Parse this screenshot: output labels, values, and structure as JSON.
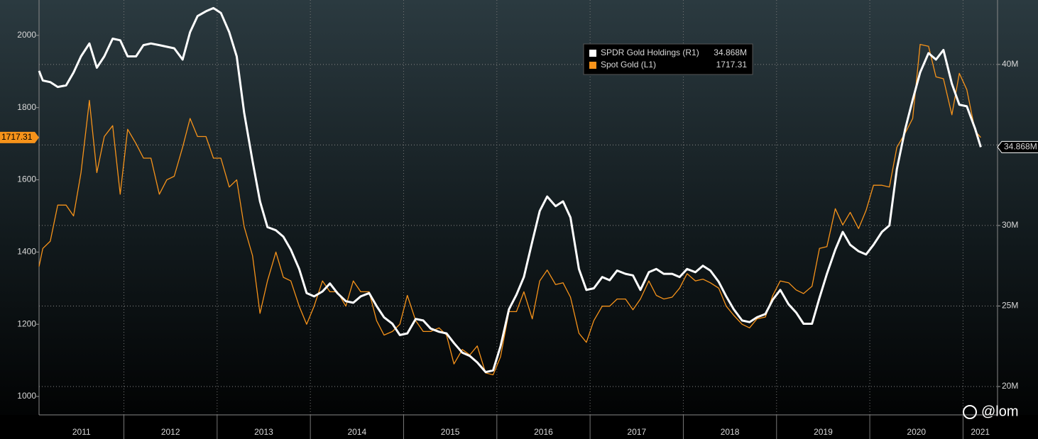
{
  "chart_data": {
    "type": "line",
    "x": [
      2011.09,
      2011.13,
      2011.21,
      2011.29,
      2011.38,
      2011.46,
      2011.54,
      2011.63,
      2011.71,
      2011.79,
      2011.88,
      2011.96,
      2012.04,
      2012.13,
      2012.21,
      2012.29,
      2012.38,
      2012.46,
      2012.54,
      2012.63,
      2012.71,
      2012.79,
      2012.88,
      2012.96,
      2013.04,
      2013.13,
      2013.21,
      2013.29,
      2013.38,
      2013.46,
      2013.54,
      2013.63,
      2013.71,
      2013.79,
      2013.88,
      2013.96,
      2014.04,
      2014.13,
      2014.21,
      2014.29,
      2014.38,
      2014.46,
      2014.54,
      2014.63,
      2014.71,
      2014.79,
      2014.88,
      2014.96,
      2015.04,
      2015.13,
      2015.21,
      2015.29,
      2015.38,
      2015.46,
      2015.54,
      2015.63,
      2015.71,
      2015.79,
      2015.88,
      2015.96,
      2016.04,
      2016.13,
      2016.21,
      2016.29,
      2016.38,
      2016.46,
      2016.54,
      2016.63,
      2016.71,
      2016.79,
      2016.88,
      2016.96,
      2017.04,
      2017.13,
      2017.21,
      2017.29,
      2017.38,
      2017.46,
      2017.54,
      2017.63,
      2017.71,
      2017.79,
      2017.88,
      2017.96,
      2018.04,
      2018.13,
      2018.21,
      2018.29,
      2018.38,
      2018.46,
      2018.54,
      2018.63,
      2018.71,
      2018.79,
      2018.88,
      2018.96,
      2019.04,
      2019.13,
      2019.21,
      2019.29,
      2019.38,
      2019.46,
      2019.54,
      2019.63,
      2019.71,
      2019.79,
      2019.88,
      2019.96,
      2020.04,
      2020.13,
      2020.21,
      2020.29,
      2020.38,
      2020.46,
      2020.54,
      2020.63,
      2020.71,
      2020.79,
      2020.88,
      2020.96,
      2021.04,
      2021.13,
      2021.19
    ],
    "series": [
      {
        "name": "SPDR Gold Holdings (R1)",
        "color": "#ffffff",
        "axis": "y2",
        "last_value_label": "34.868M",
        "values": [
          39.6,
          39.0,
          38.9,
          38.6,
          38.7,
          39.5,
          40.5,
          41.3,
          39.8,
          40.5,
          41.6,
          41.5,
          40.5,
          40.5,
          41.2,
          41.3,
          41.2,
          41.1,
          41.0,
          40.3,
          42.0,
          43.0,
          43.3,
          43.5,
          43.2,
          42.0,
          40.5,
          37.0,
          34.0,
          31.5,
          29.9,
          29.7,
          29.3,
          28.5,
          27.3,
          25.8,
          25.6,
          25.9,
          26.4,
          25.8,
          25.3,
          25.2,
          25.6,
          25.8,
          25.0,
          24.3,
          23.9,
          23.2,
          23.3,
          24.2,
          24.1,
          23.6,
          23.4,
          23.3,
          22.7,
          22.1,
          21.9,
          21.5,
          20.9,
          21.0,
          22.5,
          24.8,
          25.7,
          26.8,
          29.0,
          30.9,
          31.8,
          31.2,
          31.5,
          30.5,
          27.3,
          26.0,
          26.1,
          26.8,
          26.6,
          27.2,
          27.0,
          26.9,
          26.0,
          27.1,
          27.3,
          27.0,
          27.0,
          26.8,
          27.3,
          27.1,
          27.5,
          27.2,
          26.5,
          25.6,
          24.8,
          24.1,
          24.0,
          24.3,
          24.5,
          25.4,
          26.0,
          25.1,
          24.6,
          23.9,
          23.9,
          25.5,
          27.0,
          28.5,
          29.6,
          28.8,
          28.4,
          28.2,
          28.8,
          29.6,
          30.0,
          33.5,
          36.0,
          37.8,
          39.5,
          40.7,
          40.3,
          40.9,
          38.8,
          37.5,
          37.4,
          36.0,
          34.868
        ]
      },
      {
        "name": "Spot Gold (L1)",
        "color": "#f7931a",
        "axis": "y",
        "last_value_label": "1717.31",
        "values": [
          1360,
          1410,
          1430,
          1530,
          1530,
          1500,
          1620,
          1820,
          1620,
          1720,
          1750,
          1560,
          1740,
          1700,
          1660,
          1660,
          1560,
          1600,
          1610,
          1690,
          1770,
          1720,
          1720,
          1660,
          1660,
          1580,
          1600,
          1470,
          1390,
          1230,
          1320,
          1400,
          1330,
          1320,
          1250,
          1200,
          1250,
          1320,
          1290,
          1290,
          1250,
          1320,
          1290,
          1290,
          1210,
          1170,
          1180,
          1200,
          1280,
          1210,
          1180,
          1180,
          1190,
          1170,
          1090,
          1130,
          1115,
          1140,
          1065,
          1060,
          1110,
          1235,
          1235,
          1290,
          1215,
          1320,
          1350,
          1310,
          1315,
          1275,
          1175,
          1150,
          1210,
          1250,
          1250,
          1270,
          1270,
          1240,
          1270,
          1320,
          1280,
          1270,
          1275,
          1300,
          1340,
          1320,
          1325,
          1315,
          1300,
          1250,
          1225,
          1200,
          1190,
          1215,
          1220,
          1280,
          1320,
          1315,
          1295,
          1285,
          1305,
          1410,
          1415,
          1520,
          1475,
          1510,
          1465,
          1515,
          1585,
          1585,
          1580,
          1690,
          1730,
          1770,
          1975,
          1970,
          1885,
          1880,
          1780,
          1895,
          1850,
          1735,
          1717.31
        ]
      }
    ],
    "xlim": [
      2011.09,
      2021.37
    ],
    "xticks": [
      2011,
      2012,
      2013,
      2014,
      2015,
      2016,
      2017,
      2018,
      2019,
      2020,
      2021
    ],
    "ylim": [
      949,
      2098
    ],
    "yticks": [
      1000,
      1200,
      1400,
      1600,
      1800,
      2000
    ],
    "y2lim": [
      18.24,
      44.0
    ],
    "y2ticks": [
      {
        "value": 20,
        "label": "20M"
      },
      {
        "value": 25,
        "label": "25M"
      },
      {
        "value": 30,
        "label": "30M"
      },
      {
        "value": 35,
        "label": "35M"
      },
      {
        "value": 40,
        "label": "40M"
      }
    ],
    "grid": true,
    "watermark": "@lom"
  }
}
